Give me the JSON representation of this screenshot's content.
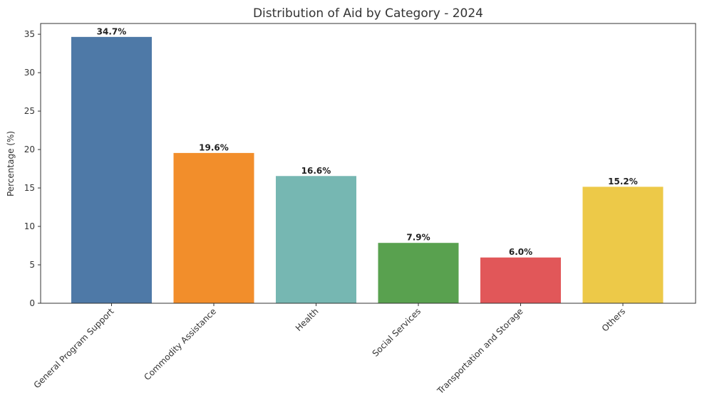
{
  "chart_data": {
    "type": "bar",
    "title": "Distribution of Aid by Category - 2024",
    "xlabel": "",
    "ylabel": "Percentage (%)",
    "ylim": [
      0,
      36.4
    ],
    "yticks": [
      0,
      5,
      10,
      15,
      20,
      25,
      30,
      35
    ],
    "grid": false,
    "categories": [
      "General Program Support",
      "Commodity Assistance",
      "Health",
      "Social Services",
      "Transportation and Storage",
      "Others"
    ],
    "values": [
      34.7,
      19.6,
      16.6,
      7.9,
      6.0,
      15.2
    ],
    "data_labels": [
      "34.7%",
      "19.6%",
      "16.6%",
      "7.9%",
      "6.0%",
      "15.2%"
    ],
    "colors": [
      "#4e79a7",
      "#f28e2b",
      "#76b7b2",
      "#59a14f",
      "#e15759",
      "#edc948"
    ]
  }
}
